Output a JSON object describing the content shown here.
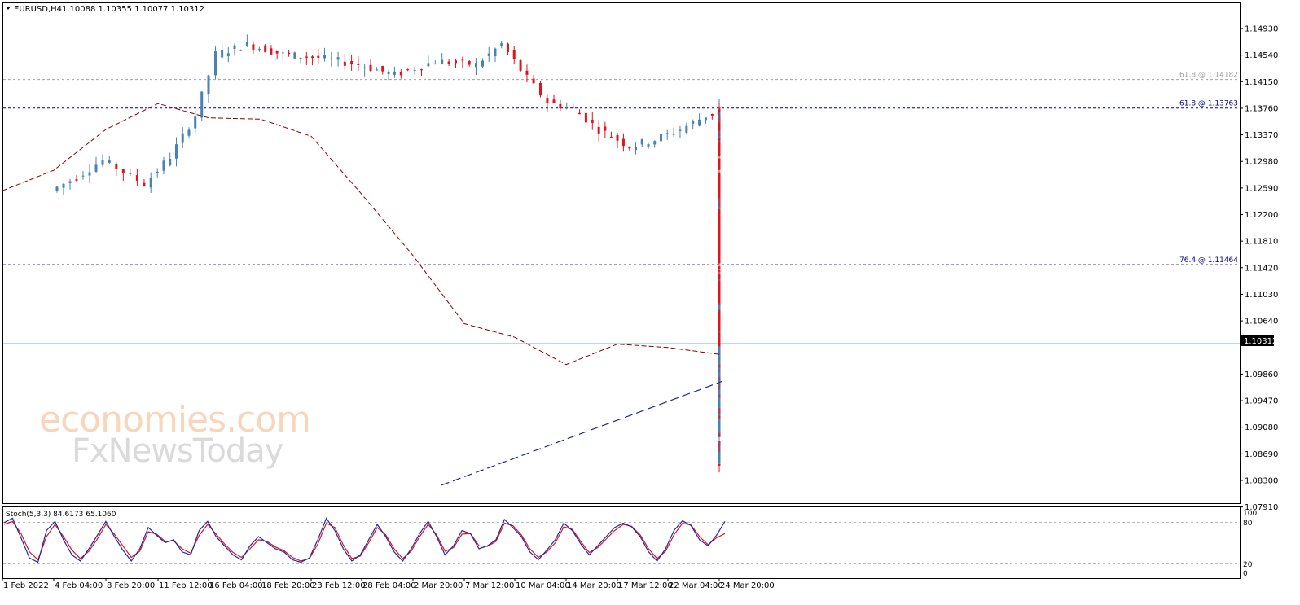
{
  "header": {
    "symbol": "EURUSD,H4",
    "ohlc": "1.10088 1.10355 1.10077 1.10312"
  },
  "indicator": {
    "label": "Stoch(5,3,3) 84.6173 65.1060",
    "levels": [
      "100",
      "80",
      "20",
      "0"
    ]
  },
  "watermark": {
    "line1": "economies.com",
    "line2": "FxNewsToday"
  },
  "price_tag": "1.10312",
  "chart_data": {
    "type": "candlestick",
    "symbol": "EURUSD",
    "timeframe": "H4",
    "y_ticks": [
      "1.14930",
      "1.14540",
      "1.14150",
      "1.13760",
      "1.13370",
      "1.12980",
      "1.12590",
      "1.12200",
      "1.11810",
      "1.11420",
      "1.11030",
      "1.10640",
      "1.09860",
      "1.09470",
      "1.09080",
      "1.08690",
      "1.08300",
      "1.07910"
    ],
    "ylim": [
      1.0791,
      1.1524
    ],
    "x_ticks": [
      "1 Feb 2022",
      "4 Feb 04:00",
      "8 Feb 20:00",
      "11 Feb 12:00",
      "16 Feb 04:00",
      "18 Feb 20:00",
      "23 Feb 12:00",
      "28 Feb 04:00",
      "2 Mar 20:00",
      "7 Mar 12:00",
      "10 Mar 04:00",
      "14 Mar 20:00",
      "17 Mar 12:00",
      "22 Mar 04:00",
      "24 Mar 20:00"
    ],
    "fib_levels": [
      {
        "label": "61.8 @ 1.14182",
        "value": 1.14182,
        "color": "#a0a0a0"
      },
      {
        "label": "61.8 @ 1.13763",
        "value": 1.13763,
        "color": "#00008b"
      },
      {
        "label": "76.4 @ 1.11464",
        "value": 1.11464,
        "color": "#00008b"
      }
    ],
    "current_price": 1.10312,
    "moving_average": [
      {
        "x": "1 Feb 2022",
        "y": 1.1255
      },
      {
        "x": "4 Feb 04:00",
        "y": 1.1285
      },
      {
        "x": "8 Feb 20:00",
        "y": 1.1345
      },
      {
        "x": "11 Feb 12:00",
        "y": 1.1383
      },
      {
        "x": "16 Feb 04:00",
        "y": 1.1362
      },
      {
        "x": "18 Feb 20:00",
        "y": 1.136
      },
      {
        "x": "23 Feb 12:00",
        "y": 1.1335
      },
      {
        "x": "28 Feb 04:00",
        "y": 1.125
      },
      {
        "x": "2 Mar 20:00",
        "y": 1.116
      },
      {
        "x": "7 Mar 12:00",
        "y": 1.106
      },
      {
        "x": "10 Mar 04:00",
        "y": 1.104
      },
      {
        "x": "14 Mar 20:00",
        "y": 1.1
      },
      {
        "x": "17 Mar 12:00",
        "y": 1.103
      },
      {
        "x": "22 Mar 04:00",
        "y": 1.1025
      },
      {
        "x": "24 Mar 20:00",
        "y": 1.1015
      }
    ],
    "trendline": [
      {
        "x": "2 Mar 20:00",
        "y": 1.0823
      },
      {
        "x": "24 Mar 20:00",
        "y": 1.0975
      }
    ],
    "price_path": [
      [
        1,
        1.1255
      ],
      [
        1.5,
        1.1275
      ],
      [
        2,
        1.13
      ],
      [
        2.8,
        1.1265
      ],
      [
        3.3,
        1.1305
      ],
      [
        3.8,
        1.1365
      ],
      [
        4.2,
        1.1455
      ],
      [
        4.8,
        1.147
      ],
      [
        5.5,
        1.1455
      ],
      [
        6.2,
        1.145
      ],
      [
        7,
        1.144
      ],
      [
        7.7,
        1.1425
      ],
      [
        8.5,
        1.1445
      ],
      [
        9.3,
        1.144
      ],
      [
        9.8,
        1.147
      ],
      [
        10.3,
        1.142
      ],
      [
        10.7,
        1.1385
      ],
      [
        11.2,
        1.1375
      ],
      [
        11.7,
        1.1345
      ],
      [
        12.3,
        1.132
      ],
      [
        12.8,
        1.133
      ],
      [
        13.3,
        1.1345
      ],
      [
        13.8,
        1.1365
      ],
      [
        14.3,
        1.1375
      ],
      [
        14.8,
        1.1365
      ],
      [
        15.5,
        1.136
      ],
      [
        16,
        1.1358
      ],
      [
        16.6,
        1.135
      ],
      [
        17,
        1.133
      ],
      [
        17.5,
        1.1318
      ],
      [
        18,
        1.136
      ],
      [
        18.5,
        1.133
      ],
      [
        19,
        1.1325
      ],
      [
        19.5,
        1.133
      ],
      [
        20,
        1.132
      ],
      [
        20.5,
        1.13
      ],
      [
        21,
        1.126
      ],
      [
        21.5,
        1.119
      ],
      [
        22,
        1.1175
      ],
      [
        22.5,
        1.121
      ],
      [
        23,
        1.124
      ],
      [
        23.5,
        1.1175
      ],
      [
        24,
        1.119
      ],
      [
        24.5,
        1.1225
      ],
      [
        25,
        1.115
      ],
      [
        25.5,
        1.113
      ],
      [
        26,
        1.1115
      ],
      [
        26.5,
        1.109
      ],
      [
        27,
        1.106
      ],
      [
        27.5,
        1.101
      ],
      [
        28,
        1.095
      ],
      [
        28.5,
        1.087
      ],
      [
        29,
        1.0855
      ],
      [
        29.5,
        1.0865
      ],
      [
        30,
        1.0895
      ],
      [
        30.5,
        1.095
      ],
      [
        31,
        1.1005
      ],
      [
        31.5,
        1.1085
      ],
      [
        32,
        1.105
      ],
      [
        32.5,
        1.101
      ],
      [
        33,
        1.1
      ],
      [
        33.5,
        1.093
      ],
      [
        34,
        1.0945
      ],
      [
        34.5,
        1.0985
      ],
      [
        35,
        1.1
      ],
      [
        35.5,
        1.096
      ],
      [
        36,
        1.0985
      ],
      [
        36.5,
        1.101
      ],
      [
        37,
        1.104
      ],
      [
        37.5,
        1.113
      ],
      [
        38,
        1.109
      ],
      [
        38.5,
        1.107
      ],
      [
        39,
        1.105
      ],
      [
        39.5,
        1.1045
      ],
      [
        40,
        1.1035
      ],
      [
        40.5,
        1.102
      ],
      [
        41,
        1.1025
      ],
      [
        41.5,
        1.1035
      ],
      [
        42,
        1.101
      ],
      [
        42.5,
        1.1
      ],
      [
        43,
        1.099
      ],
      [
        43.5,
        1.0975
      ],
      [
        44,
        1.0995
      ],
      [
        44.3,
        1.1031
      ]
    ],
    "stochastic": {
      "k": [
        83,
        90,
        58,
        25,
        18,
        70,
        85,
        55,
        30,
        20,
        40,
        62,
        85,
        60,
        38,
        20,
        40,
        75,
        62,
        50,
        55,
        35,
        30,
        70,
        85,
        60,
        45,
        30,
        22,
        45,
        60,
        50,
        40,
        35,
        22,
        18,
        25,
        55,
        90,
        70,
        40,
        20,
        30,
        55,
        80,
        60,
        35,
        20,
        40,
        65,
        85,
        60,
        30,
        45,
        70,
        65,
        40,
        45,
        55,
        88,
        75,
        60,
        35,
        22,
        38,
        55,
        82,
        70,
        48,
        30,
        45,
        60,
        75,
        82,
        76,
        60,
        35,
        20,
        40,
        70,
        86,
        78,
        55,
        45,
        62,
        85
      ],
      "d": [
        80,
        85,
        65,
        35,
        22,
        60,
        80,
        60,
        38,
        24,
        36,
        56,
        80,
        64,
        45,
        26,
        36,
        68,
        64,
        52,
        53,
        40,
        33,
        62,
        80,
        64,
        48,
        34,
        26,
        40,
        55,
        52,
        43,
        37,
        26,
        20,
        24,
        48,
        82,
        75,
        46,
        24,
        28,
        50,
        75,
        63,
        40,
        24,
        36,
        60,
        80,
        63,
        36,
        42,
        64,
        65,
        45,
        44,
        52,
        82,
        78,
        63,
        40,
        26,
        35,
        50,
        76,
        72,
        52,
        34,
        42,
        56,
        70,
        80,
        77,
        63,
        40,
        24,
        36,
        63,
        82,
        79,
        60,
        47,
        58,
        65
      ]
    }
  }
}
